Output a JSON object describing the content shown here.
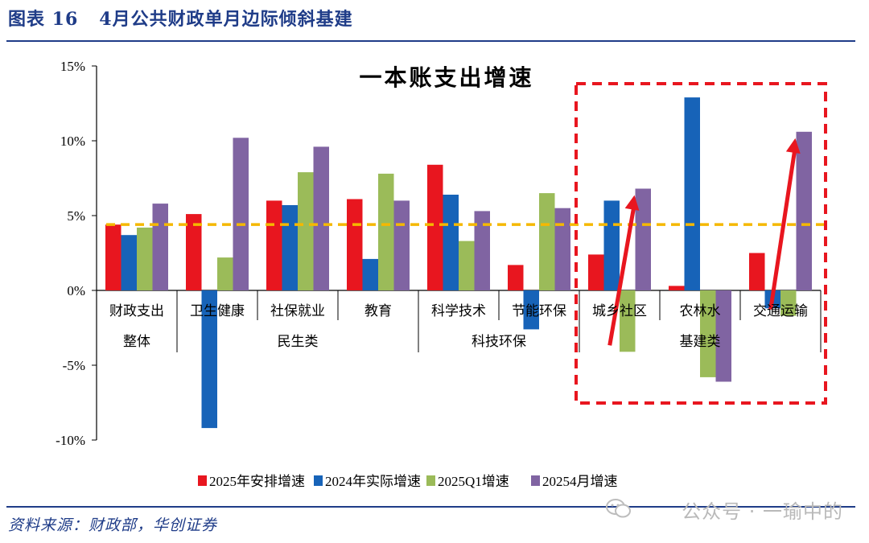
{
  "figure": {
    "label": "图表 16",
    "title": "4月公共财政单月边际倾斜基建",
    "source": "资料来源：财政部，华创证券",
    "watermark": "公众号 · 一瑜中的"
  },
  "colors": {
    "series": [
      "#e8161f",
      "#1763b8",
      "#9bbb59",
      "#8064a2"
    ],
    "reference_line": "#f5b800",
    "highlight_box": "#e8161f",
    "arrow": "#e8161f",
    "header": "#1f3c88"
  },
  "chart_data": {
    "type": "bar",
    "title": "一本账支出增速",
    "categories": [
      "财政支出",
      "卫生健康",
      "社保就业",
      "教育",
      "科学技术",
      "节能环保",
      "城乡社区",
      "农林水",
      "交通运输"
    ],
    "groups": [
      {
        "label": "整体",
        "categories": [
          "财政支出"
        ]
      },
      {
        "label": "民生类",
        "categories": [
          "卫生健康",
          "社保就业",
          "教育"
        ]
      },
      {
        "label": "科技环保",
        "categories": [
          "科学技术",
          "节能环保"
        ]
      },
      {
        "label": "基建类",
        "categories": [
          "城乡社区",
          "农林水",
          "交通运输"
        ]
      }
    ],
    "series": [
      {
        "name": "2025年安排增速",
        "values": [
          4.4,
          5.1,
          6.0,
          6.1,
          8.4,
          1.7,
          2.4,
          0.3,
          2.5
        ]
      },
      {
        "name": "2024年实际增速",
        "values": [
          3.7,
          -9.2,
          5.7,
          2.1,
          6.4,
          -2.6,
          6.0,
          12.9,
          -1.2
        ]
      },
      {
        "name": "2025Q1增速",
        "values": [
          4.2,
          2.2,
          7.9,
          7.8,
          3.3,
          6.5,
          -4.1,
          -5.8,
          -1.7
        ]
      },
      {
        "name": "20254月增速",
        "values": [
          5.8,
          10.2,
          9.6,
          6.0,
          5.3,
          5.5,
          6.8,
          -6.1,
          10.6
        ]
      }
    ],
    "reference_line": 4.4,
    "ylim": [
      -10,
      15
    ],
    "yticks": [
      15,
      10,
      5,
      0,
      -5,
      -10
    ],
    "ytick_labels": [
      "15%",
      "10%",
      "5%",
      "0%",
      "-5%",
      "-10%"
    ],
    "legend_position": "bottom",
    "highlight_categories": [
      "城乡社区",
      "农林水",
      "交通运输"
    ],
    "arrows": [
      {
        "category": "城乡社区",
        "from": -4.1,
        "to": 6.8
      },
      {
        "category": "交通运输",
        "from": -1.7,
        "to": 10.6
      }
    ]
  }
}
